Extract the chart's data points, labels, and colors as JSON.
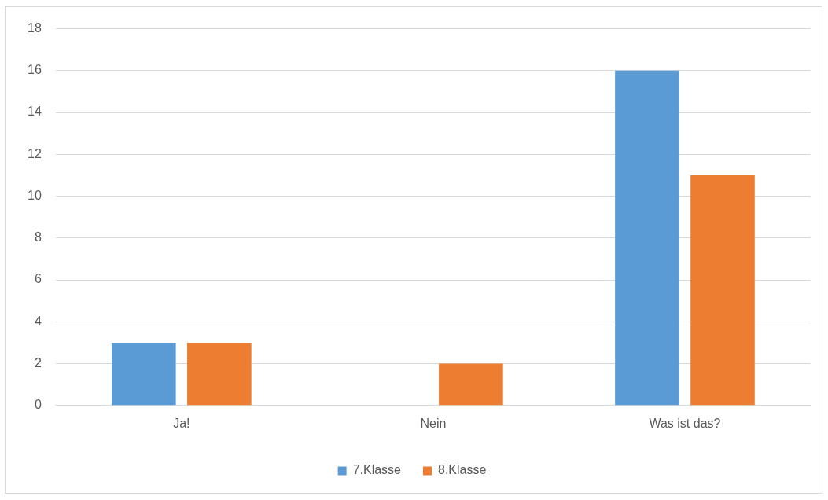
{
  "chart_data": {
    "type": "bar",
    "categories": [
      "Ja!",
      "Nein",
      "Was ist das?"
    ],
    "series": [
      {
        "name": "7.Klasse",
        "color": "#5b9bd5",
        "values": [
          3,
          0,
          16
        ]
      },
      {
        "name": "8.Klasse",
        "color": "#ed7d31",
        "values": [
          3,
          2,
          11
        ]
      }
    ],
    "ylim": [
      0,
      18
    ],
    "yticks": [
      0,
      2,
      4,
      6,
      8,
      10,
      12,
      14,
      16,
      18
    ],
    "grid": "y",
    "legend": "bottom"
  }
}
